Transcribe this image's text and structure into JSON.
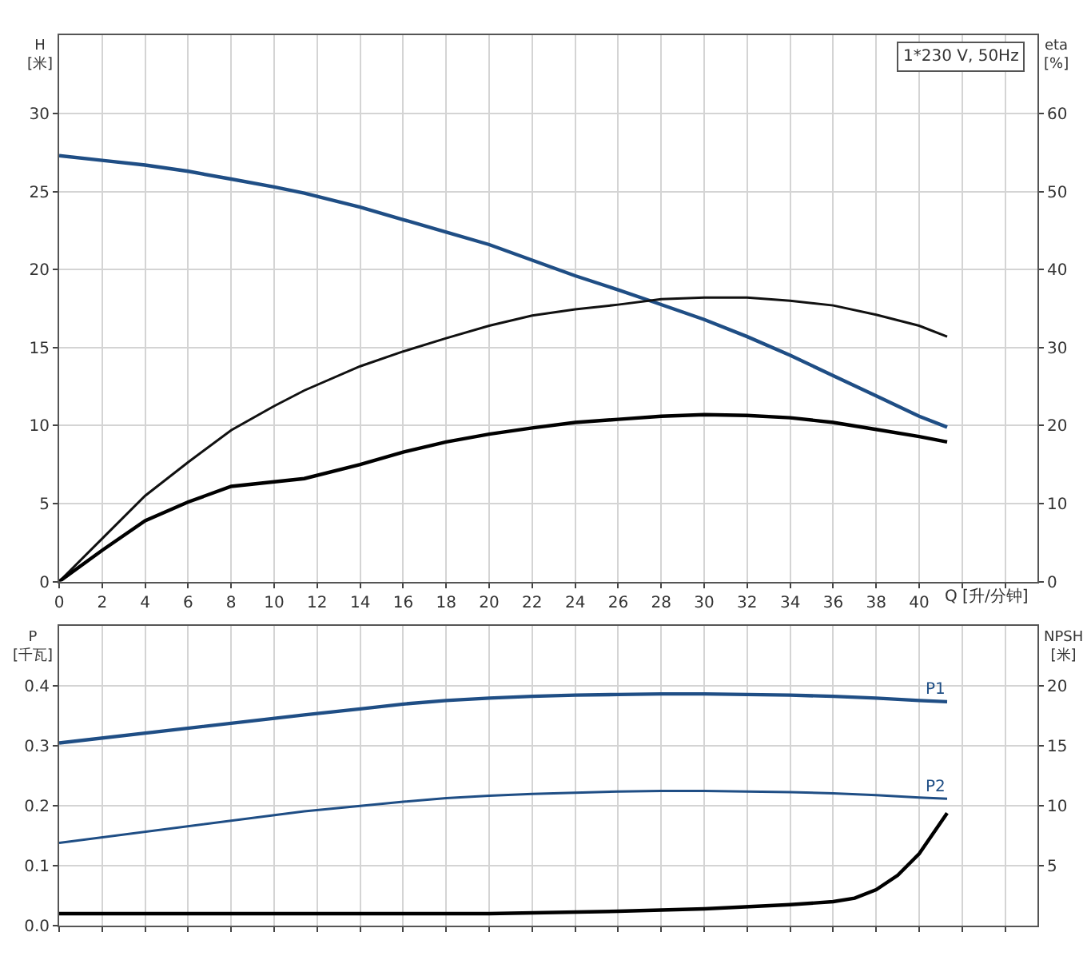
{
  "chart_data": [
    {
      "type": "line",
      "xlabel": "Q [升/分钟]",
      "ylabel": "H [米]",
      "y2label": "eta [%]",
      "annotations": [
        "1*230 V, 50Hz"
      ],
      "xlim": [
        0,
        45.5
      ],
      "xticks": [
        0,
        2,
        4,
        6,
        8,
        10,
        12,
        14,
        16,
        18,
        20,
        22,
        24,
        26,
        28,
        30,
        32,
        34,
        36,
        38,
        40,
        {
          "value": 42,
          "label": null
        },
        {
          "value": 44,
          "label": null
        }
      ],
      "ylim": [
        0,
        35
      ],
      "yticks": [
        0,
        5,
        10,
        15,
        20,
        25,
        30
      ],
      "y2lim": [
        0,
        70
      ],
      "y2ticks": [
        0,
        10,
        20,
        30,
        40,
        50,
        60
      ],
      "grid": true,
      "legend": false,
      "marker": "none",
      "line_style": "solid",
      "series": [
        {
          "color": "#1f4e85",
          "x": [
            0,
            2,
            4,
            6,
            8,
            10,
            11.4,
            14,
            16,
            18,
            20,
            22,
            24,
            26,
            27.7,
            30,
            32,
            34,
            36,
            38,
            40,
            41.3
          ],
          "values": [
            27.3,
            27.0,
            26.7,
            26.3,
            25.8,
            25.3,
            24.9,
            24.0,
            23.2,
            22.4,
            21.6,
            20.6,
            19.6,
            18.7,
            17.9,
            16.8,
            15.7,
            14.5,
            13.2,
            11.9,
            10.6,
            9.9
          ]
        },
        {
          "color": "#111111",
          "axis": "y2",
          "x": [
            0,
            2,
            4,
            6,
            8,
            10,
            11.4,
            14,
            16,
            18,
            20,
            22,
            24,
            26,
            28,
            30,
            32,
            34,
            36,
            38,
            40,
            41.3
          ],
          "values": [
            0,
            5.5,
            11,
            15.3,
            19.4,
            22.5,
            24.5,
            27.6,
            29.5,
            31.2,
            32.8,
            34.1,
            34.9,
            35.5,
            36.2,
            36.4,
            36.4,
            36.0,
            35.4,
            34.2,
            32.8,
            31.4
          ]
        },
        {
          "color": "#000000",
          "axis": "y2",
          "x": [
            0,
            2,
            4,
            6,
            8,
            11.4,
            14,
            16,
            18,
            20,
            22,
            24,
            26,
            28,
            30,
            32,
            34,
            36,
            38,
            40,
            41.3
          ],
          "values": [
            0,
            4,
            7.8,
            10.2,
            12.2,
            13.2,
            15,
            16.6,
            17.9,
            18.9,
            19.7,
            20.4,
            20.8,
            21.2,
            21.4,
            21.3,
            21.0,
            20.4,
            19.5,
            18.6,
            17.9
          ]
        }
      ]
    },
    {
      "type": "line",
      "ylabel": "P [千瓦]",
      "y2label": "NPSH [米]",
      "xlim": [
        0,
        45.5
      ],
      "xticks": [
        0,
        2,
        4,
        6,
        8,
        10,
        12,
        14,
        16,
        18,
        20,
        22,
        24,
        26,
        28,
        30,
        32,
        34,
        36,
        38,
        40,
        42,
        44
      ],
      "tick_labels": "y",
      "ylim": [
        0,
        0.5
      ],
      "yticks": [
        {
          "value": 0,
          "label": "0.0"
        },
        0.1,
        0.2,
        0.3,
        0.4
      ],
      "y2lim": [
        0,
        25
      ],
      "y2ticks": [
        5,
        10,
        15,
        20
      ],
      "grid": true,
      "legend": false,
      "marker": "none",
      "line_style": "solid",
      "series": [
        {
          "name": "P1",
          "color": "#1f4e85",
          "x": [
            0,
            11.4,
            14,
            16,
            18,
            20,
            22,
            24,
            26,
            28,
            30,
            32,
            34,
            36,
            38,
            40,
            41.3
          ],
          "values": [
            0.305,
            0.352,
            0.362,
            0.37,
            0.376,
            0.38,
            0.383,
            0.385,
            0.386,
            0.387,
            0.387,
            0.386,
            0.385,
            0.383,
            0.38,
            0.376,
            0.374
          ]
        },
        {
          "name": "P2",
          "color": "#1f4e85",
          "x": [
            0,
            11.4,
            14,
            16,
            18,
            20,
            22,
            24,
            26,
            28,
            30,
            32,
            34,
            36,
            38,
            40,
            41.3
          ],
          "values": [
            0.138,
            0.191,
            0.2,
            0.207,
            0.213,
            0.217,
            0.22,
            0.222,
            0.224,
            0.225,
            0.225,
            0.224,
            0.223,
            0.221,
            0.218,
            0.214,
            0.212
          ]
        },
        {
          "color": "#000000",
          "axis": "y2",
          "x": [
            0,
            11.4,
            20,
            26,
            30,
            34,
            36,
            37,
            38,
            39,
            40,
            41.3
          ],
          "values": [
            1.0,
            1.0,
            1.0,
            1.2,
            1.4,
            1.75,
            2.0,
            2.3,
            3.0,
            4.2,
            6.0,
            9.4
          ]
        }
      ]
    }
  ]
}
